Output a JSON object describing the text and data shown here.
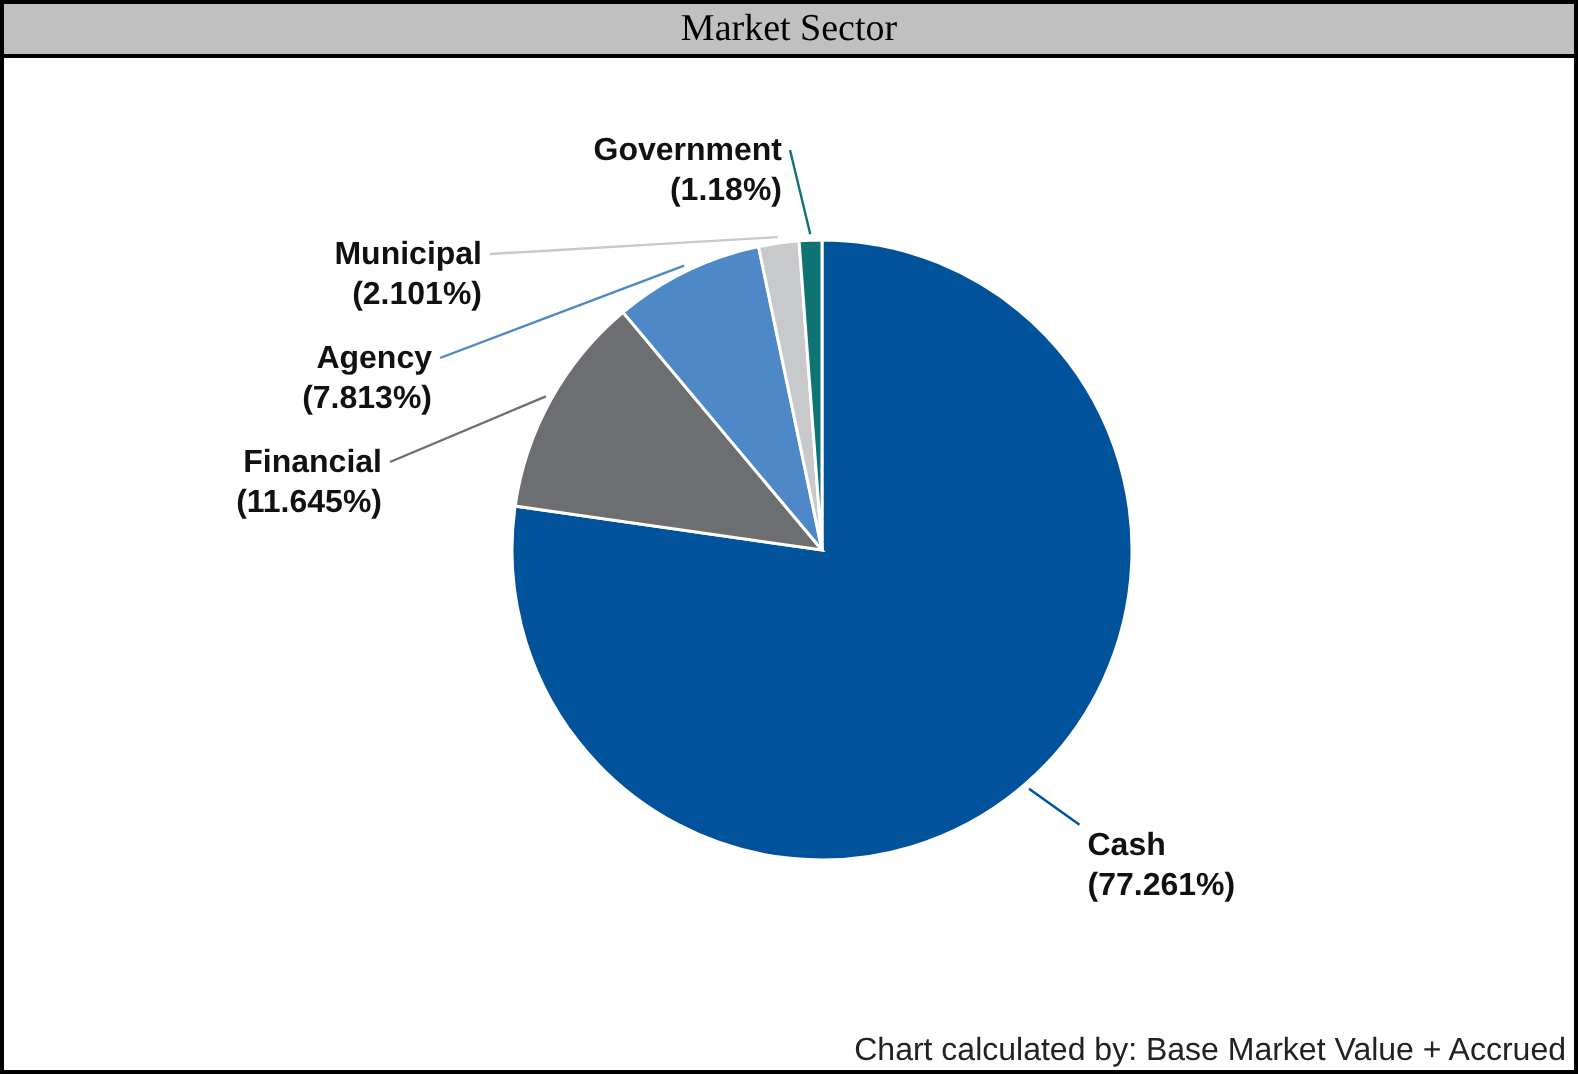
{
  "chart_data": {
    "type": "pie",
    "title": "Market Sector",
    "categories": [
      "Cash",
      "Financial",
      "Agency",
      "Municipal",
      "Government"
    ],
    "values": [
      77.261,
      11.645,
      7.813,
      2.101,
      1.18
    ],
    "value_labels": [
      "(77.261%)",
      "(11.645%)",
      "(7.813%)",
      "(2.101%)",
      "(1.18%)"
    ],
    "colors": [
      "#00529b",
      "#6d6e71",
      "#4f88c6",
      "#c8c9cb",
      "#0e7373"
    ],
    "annotations": [
      "Chart calculated by: Base Market Value + Accrued"
    ]
  }
}
